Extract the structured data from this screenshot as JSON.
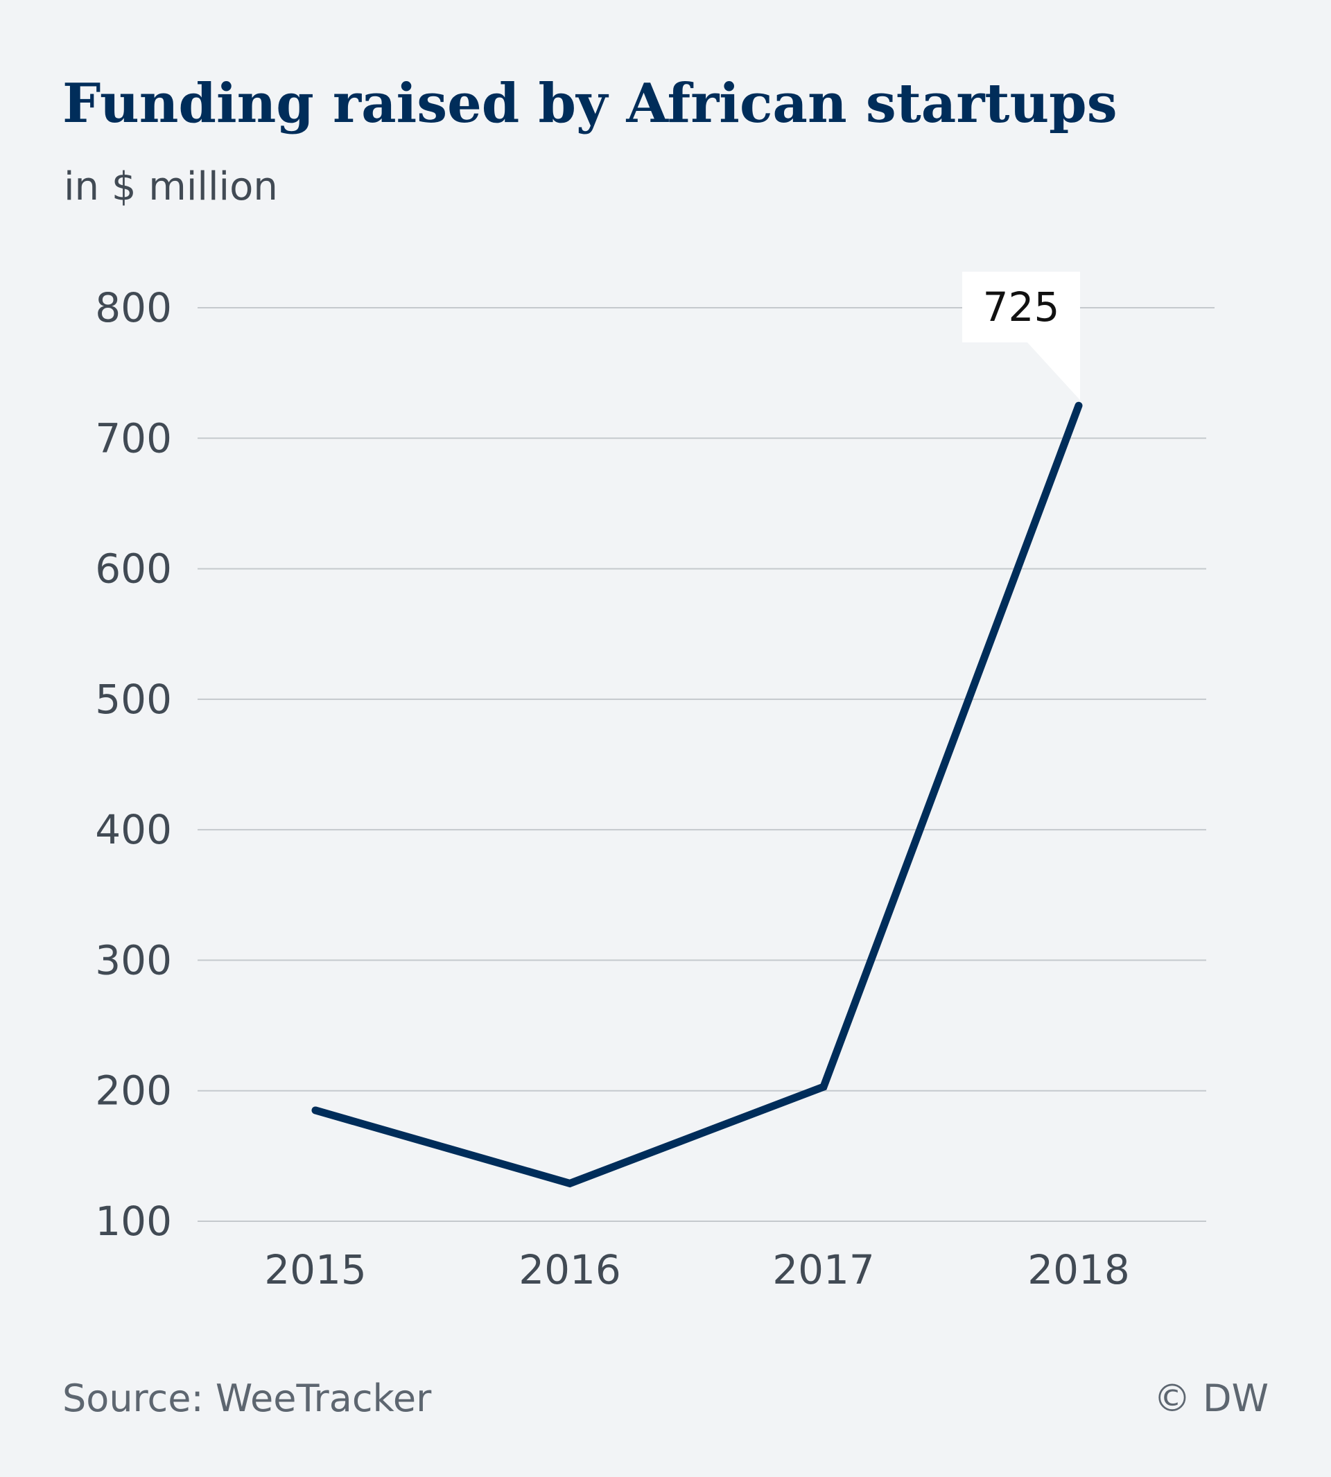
{
  "header": {
    "title": "Funding raised by African startups",
    "subtitle": "in $ million"
  },
  "chart_data": {
    "type": "line",
    "title": "Funding raised by African startups",
    "subtitle": "in $ million",
    "categories": [
      "2015",
      "2016",
      "2017",
      "2018"
    ],
    "series": [
      {
        "values": [
          185,
          129,
          203,
          725
        ]
      }
    ],
    "ylim": [
      100,
      800
    ],
    "yticks": [
      100,
      200,
      300,
      400,
      500,
      600,
      700,
      800
    ],
    "grid": true,
    "annotations": [
      {
        "category": "2018",
        "value": 725,
        "text": "725"
      }
    ],
    "colors": {
      "line": "#002d5a",
      "background": "#f2f4f6"
    }
  },
  "footer": {
    "source": "Source: WeeTracker",
    "credit": "© DW"
  }
}
